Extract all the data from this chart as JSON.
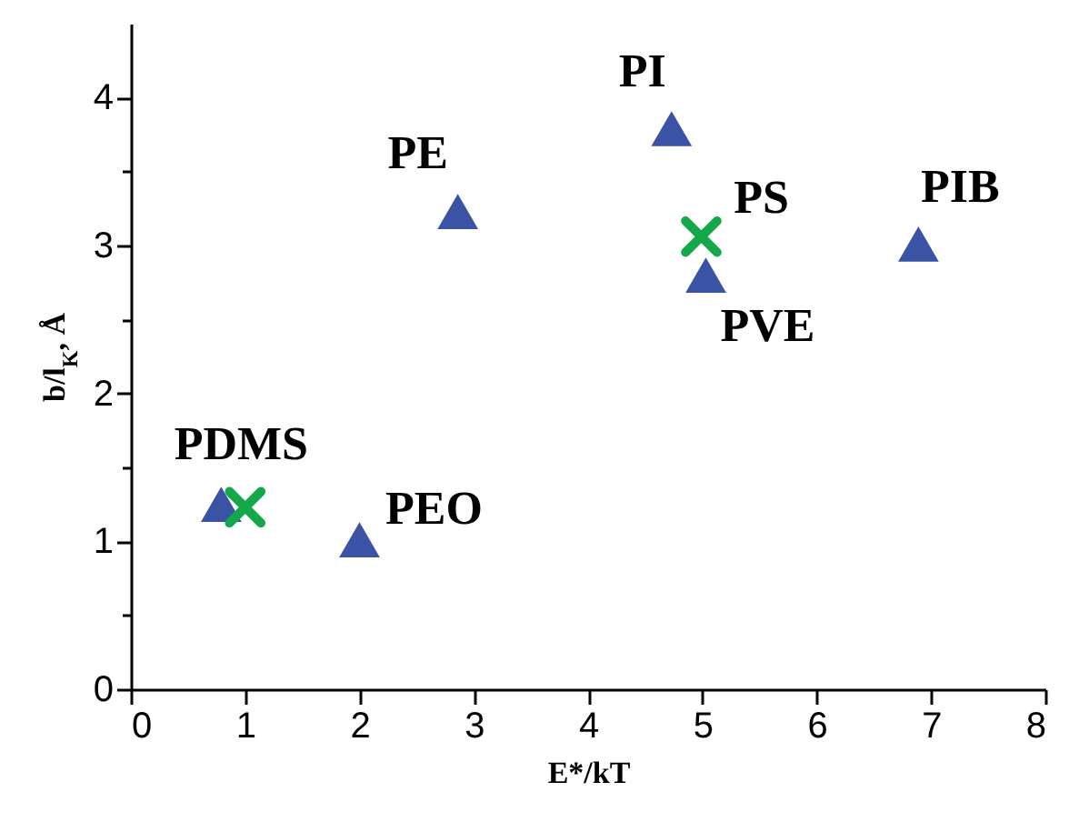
{
  "chart_data": {
    "type": "scatter",
    "xlabel": "E*/kT",
    "ylabel": "b/l$_{K}$, Å",
    "series": [
      {
        "color": "#3a53a4",
        "marker": "triangle",
        "x": [
          0.79,
          2.0,
          2.86,
          4.73,
          5.03,
          6.89
        ],
        "values": [
          1.25,
          1.01,
          3.23,
          3.79,
          2.8,
          3.01
        ]
      },
      {
        "color": "#14a84b",
        "marker": "cross",
        "x": [
          1.0,
          4.99
        ],
        "values": [
          1.23,
          3.06
        ]
      }
    ],
    "annotations": [
      {
        "text": "PDMS",
        "x": 0.79,
        "y": 1.25
      },
      {
        "text": "PEO",
        "x": 2.0,
        "y": 1.01
      },
      {
        "text": "PE",
        "x": 2.86,
        "y": 3.23
      },
      {
        "text": "PI",
        "x": 4.73,
        "y": 3.79
      },
      {
        "text": "PS",
        "x": 4.99,
        "y": 3.06
      },
      {
        "text": "PVE",
        "x": 5.03,
        "y": 2.8
      },
      {
        "text": "PIB",
        "x": 6.89,
        "y": 3.01
      }
    ],
    "xlim": [
      0,
      8
    ],
    "ylim": [
      0,
      4.5
    ],
    "xticks": [
      0,
      1,
      2,
      3,
      4,
      5,
      6,
      7,
      8
    ],
    "yticks": [
      0,
      {
        "value": 0.5,
        "label": null
      },
      1,
      {
        "value": 1.5,
        "label": null
      },
      2,
      {
        "value": 2.5,
        "label": null
      },
      3,
      {
        "value": 3.5,
        "label": null
      },
      4
    ],
    "grid": false
  }
}
